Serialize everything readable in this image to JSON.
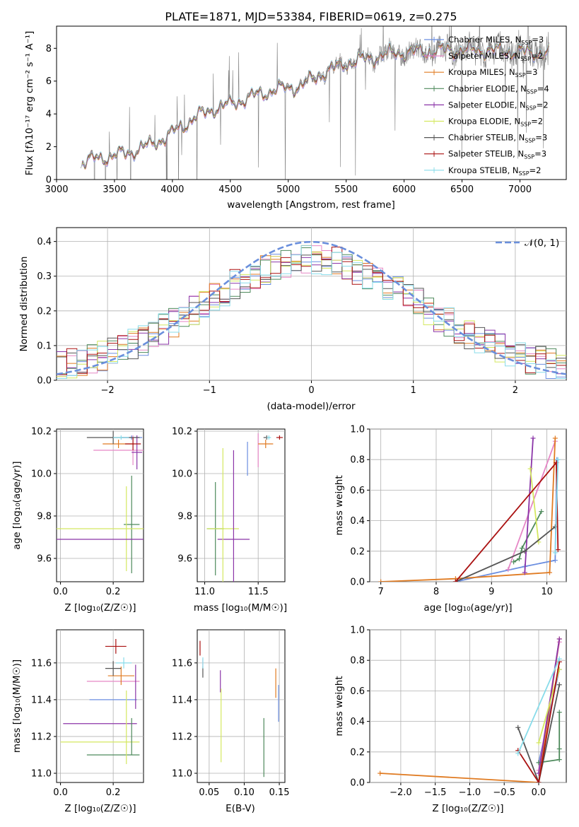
{
  "figure": {
    "title": "PLATE=1871, MJD=53384, FIBERID=0619, z=0.275"
  },
  "colors": {
    "Chabrier MILES": "#6b8ee0",
    "Salpeter MILES": "#e687c6",
    "Kroupa MILES": "#e07b22",
    "Chabrier ELODIE": "#4e8a5c",
    "Salpeter ELODIE": "#8b35a8",
    "Kroupa ELODIE": "#d4e860",
    "Chabrier STELIB": "#555555",
    "Salpeter STELIB": "#aa1111",
    "Kroupa STELIB": "#88dcea",
    "data": "#7f7f7f",
    "normal": "#6a8fdc"
  },
  "chart_data": [
    {
      "id": "spectrum",
      "type": "line",
      "title": "PLATE=1871, MJD=53384, FIBERID=0619, z=0.275",
      "xlabel": "wavelength [Angstrom, rest frame]",
      "ylabel": "Flux [f_λ 10^-17 erg cm^-2 s^-1 A^-1]",
      "xlim": [
        3000,
        7400
      ],
      "ylim": [
        0,
        9.35
      ],
      "xticks": [
        "3000",
        "3500",
        "4000",
        "4500",
        "5000",
        "5500",
        "6000",
        "6500",
        "7000"
      ],
      "yticks": [
        "0",
        "2",
        "4",
        "6",
        "8"
      ],
      "grid": false,
      "legend_position": "right",
      "legend": [
        {
          "name": "Chabrier MILES",
          "nssp": "3"
        },
        {
          "name": "Salpeter MILES",
          "nssp": "2"
        },
        {
          "name": "Kroupa MILES",
          "nssp": "3"
        },
        {
          "name": "Chabrier ELODIE",
          "nssp": "4"
        },
        {
          "name": "Salpeter ELODIE",
          "nssp": "2"
        },
        {
          "name": "Kroupa ELODIE",
          "nssp": "2"
        },
        {
          "name": "Chabrier STELIB",
          "nssp": "3"
        },
        {
          "name": "Salpeter STELIB",
          "nssp": "3"
        },
        {
          "name": "Kroupa STELIB",
          "nssp": "2"
        }
      ],
      "continuum_x": [
        3200,
        3350,
        3500,
        3650,
        3800,
        3950,
        4050,
        4200,
        4350,
        4500,
        4700,
        4900,
        5100,
        5300,
        5500,
        5700,
        5900,
        6100,
        6400,
        6700,
        7000,
        7250
      ],
      "continuum_y": [
        1.0,
        1.3,
        1.45,
        1.7,
        2.1,
        2.6,
        3.1,
        3.8,
        4.3,
        4.6,
        5.1,
        5.5,
        5.7,
        6.5,
        7.1,
        7.4,
        7.7,
        7.8,
        7.9,
        7.9,
        7.8,
        7.7
      ]
    },
    {
      "id": "residuals",
      "type": "histogram",
      "xlabel": "(data-model)/error",
      "ylabel": "Normed distribution",
      "xlim": [
        -2.5,
        2.5
      ],
      "ylim": [
        0,
        0.44
      ],
      "xticks": [
        "−2",
        "−1",
        "0",
        "1",
        "2"
      ],
      "yticks": [
        "0.0",
        "0.1",
        "0.2",
        "0.3",
        "0.4"
      ],
      "grid": true,
      "legend_position": "top-right",
      "normal_label": "𝒩(0, 1)",
      "bin_width": 0.1
    },
    {
      "id": "age-vs-Z",
      "type": "errorbar",
      "xlabel": "Z [log10(Z/Z⊙)]",
      "ylabel": "age [log10(age/yr)]",
      "xlim": [
        -0.015,
        0.315
      ],
      "ylim": [
        9.49,
        10.21
      ],
      "xticks": [
        "0.0",
        "0.2"
      ],
      "yticks": [
        "9.6",
        "9.8",
        "10.0",
        "10.2"
      ],
      "points": [
        {
          "model": "Chabrier MILES",
          "x": 0.27,
          "y": 10.17,
          "xerr": 0.04,
          "yerr": 0.01
        },
        {
          "model": "Salpeter MILES",
          "x": 0.275,
          "y": 10.11,
          "xerr": 0.15,
          "yerr": 0.07
        },
        {
          "model": "Kroupa MILES",
          "x": 0.22,
          "y": 10.14,
          "xerr": 0.06,
          "yerr": 0.02
        },
        {
          "model": "Chabrier ELODIE",
          "x": 0.27,
          "y": 9.76,
          "xerr": 0.03,
          "yerr": 0.23
        },
        {
          "model": "Salpeter ELODIE",
          "x": 0.29,
          "y": 10.1,
          "xerr": 0.02,
          "yerr": 0.08
        },
        {
          "model": "Kroupa ELODIE",
          "x": 0.25,
          "y": 9.74,
          "xerr": 0.3,
          "yerr": 0.2
        },
        {
          "model": "Chabrier STELIB",
          "x": 0.2,
          "y": 10.17,
          "xerr": 0.1,
          "yerr": 0.03
        },
        {
          "model": "Salpeter STELIB",
          "x": 0.275,
          "y": 10.14,
          "xerr": 0.03,
          "yerr": 0.03
        },
        {
          "model": "Kroupa STELIB",
          "x": 0.23,
          "y": 10.17,
          "xerr": 0.03,
          "yerr": 0.01
        },
        {
          "model": "Salpeter ELODIE",
          "x": 0.1,
          "y": 9.69,
          "xerr": 0.29,
          "yerr": 0.0
        }
      ]
    },
    {
      "id": "age-vs-mass",
      "type": "errorbar",
      "xlabel": "mass [log10(M/M⊙)]",
      "ylabel": "",
      "xlim": [
        10.93,
        11.75
      ],
      "ylim": [
        9.49,
        10.21
      ],
      "xticks": [
        "11.0",
        "11.5"
      ],
      "yticks": [
        "9.6",
        "9.8",
        "10.0",
        "10.2"
      ],
      "points": [
        {
          "model": "Chabrier MILES",
          "x": 11.4,
          "y": 10.07,
          "xerr": 0.0,
          "yerr": 0.08
        },
        {
          "model": "Salpeter MILES",
          "x": 11.5,
          "y": 10.11,
          "xerr": 0.0,
          "yerr": 0.08
        },
        {
          "model": "Kroupa MILES",
          "x": 11.57,
          "y": 10.14,
          "xerr": 0.07,
          "yerr": 0.02
        },
        {
          "model": "Chabrier ELODIE",
          "x": 11.1,
          "y": 9.74,
          "xerr": 0.08,
          "yerr": 0.22
        },
        {
          "model": "Salpeter ELODIE",
          "x": 11.27,
          "y": 9.69,
          "xerr": 0.15,
          "yerr": 0.0
        },
        {
          "model": "Kroupa ELODIE",
          "x": 11.17,
          "y": 9.74,
          "xerr": 0.15,
          "yerr": 0.38
        },
        {
          "model": "Chabrier STELIB",
          "x": 11.58,
          "y": 10.17,
          "xerr": 0.03,
          "yerr": 0.01
        },
        {
          "model": "Salpeter STELIB",
          "x": 11.7,
          "y": 10.17,
          "xerr": 0.03,
          "yerr": 0.01
        },
        {
          "model": "Kroupa STELIB",
          "x": 11.6,
          "y": 10.17,
          "xerr": 0.02,
          "yerr": 0.01
        },
        {
          "model": "Salpeter ELODIE",
          "x": 11.27,
          "y": 9.8,
          "xerr": 0.0,
          "yerr": 0.31
        }
      ]
    },
    {
      "id": "weight-vs-age",
      "type": "line",
      "xlabel": "age [log10(age/yr)]",
      "ylabel": "mass weight",
      "xlim": [
        6.8,
        10.35
      ],
      "ylim": [
        0,
        1
      ],
      "xticks": [
        "7",
        "8",
        "9",
        "10"
      ],
      "yticks": [
        "0.0",
        "0.2",
        "0.4",
        "0.6",
        "0.8",
        "1.0"
      ],
      "grid": true,
      "series": [
        {
          "model": "Chabrier MILES",
          "x": [
            8.35,
            9.6,
            10.15,
            10.18
          ],
          "y": [
            0.0,
            0.1,
            0.14,
            0.8
          ]
        },
        {
          "model": "Salpeter MILES",
          "x": [
            9.3,
            10.15
          ],
          "y": [
            0.08,
            0.92
          ]
        },
        {
          "model": "Kroupa MILES",
          "x": [
            7.0,
            8.35,
            10.05,
            10.15
          ],
          "y": [
            0.0,
            0.02,
            0.06,
            0.94
          ]
        },
        {
          "model": "Chabrier ELODIE",
          "x": [
            9.4,
            9.5,
            9.55,
            9.9
          ],
          "y": [
            0.13,
            0.15,
            0.22,
            0.46
          ]
        },
        {
          "model": "Salpeter ELODIE",
          "x": [
            9.6,
            9.75
          ],
          "y": [
            0.06,
            0.94
          ]
        },
        {
          "model": "Kroupa ELODIE",
          "x": [
            9.7,
            9.85
          ],
          "y": [
            0.74,
            0.26
          ]
        },
        {
          "model": "Chabrier STELIB",
          "x": [
            8.35,
            9.6,
            10.15
          ],
          "y": [
            0.0,
            0.2,
            0.36
          ]
        },
        {
          "model": "Salpeter STELIB",
          "x": [
            8.35,
            10.17,
            10.2
          ],
          "y": [
            0.0,
            0.78,
            0.21
          ]
        },
        {
          "model": "Kroupa STELIB",
          "x": [
            10.15,
            10.2
          ],
          "y": [
            0.19,
            0.8
          ]
        }
      ]
    },
    {
      "id": "mass-vs-Z",
      "type": "errorbar",
      "xlabel": "Z [log10(Z/Z⊙)]",
      "ylabel": "mass [log10(M/M⊙)]",
      "xlim": [
        -0.015,
        0.315
      ],
      "ylim": [
        10.95,
        11.78
      ],
      "xticks": [
        "0.0",
        "0.2"
      ],
      "yticks": [
        "11.0",
        "11.2",
        "11.4",
        "11.6"
      ],
      "points": [
        {
          "model": "Chabrier MILES",
          "x": 0.2,
          "y": 11.4,
          "xerr": 0.09,
          "yerr": 0.0
        },
        {
          "model": "Salpeter MILES",
          "x": 0.2,
          "y": 11.5,
          "xerr": 0.1,
          "yerr": 0.0
        },
        {
          "model": "Kroupa MILES",
          "x": 0.23,
          "y": 11.53,
          "xerr": 0.05,
          "yerr": 0.05
        },
        {
          "model": "Chabrier ELODIE",
          "x": 0.2,
          "y": 11.1,
          "xerr": 0.1,
          "yerr": 0.0
        },
        {
          "model": "Salpeter ELODIE",
          "x": 0.15,
          "y": 11.27,
          "xerr": 0.14,
          "yerr": 0.0
        },
        {
          "model": "Kroupa ELODIE",
          "x": 0.15,
          "y": 11.17,
          "xerr": 0.15,
          "yerr": 0.0
        },
        {
          "model": "Chabrier STELIB",
          "x": 0.2,
          "y": 11.57,
          "xerr": 0.03,
          "yerr": 0.04
        },
        {
          "model": "Salpeter STELIB",
          "x": 0.21,
          "y": 11.69,
          "xerr": 0.04,
          "yerr": 0.04
        },
        {
          "model": "Kroupa STELIB",
          "x": 0.24,
          "y": 11.6,
          "xerr": 0.03,
          "yerr": 0.03
        },
        {
          "model": "Salpeter ELODIE",
          "x": 0.285,
          "y": 11.47,
          "xerr": 0.0,
          "yerr": 0.12
        },
        {
          "model": "Kroupa ELODIE",
          "x": 0.25,
          "y": 11.25,
          "xerr": 0.0,
          "yerr": 0.2
        },
        {
          "model": "Chabrier ELODIE",
          "x": 0.27,
          "y": 11.2,
          "xerr": 0.0,
          "yerr": 0.1
        }
      ]
    },
    {
      "id": "mass-vs-ebv",
      "type": "errorbar",
      "xlabel": "E(B-V)",
      "ylabel": "",
      "xlim": [
        0.033,
        0.158
      ],
      "ylim": [
        10.95,
        11.78
      ],
      "xticks": [
        "0.05",
        "0.10",
        "0.15"
      ],
      "yticks": [
        "11.0",
        "11.2",
        "11.4",
        "11.6"
      ],
      "points": [
        {
          "model": "Chabrier MILES",
          "x": 0.149,
          "y": 11.38,
          "xerr": 0.0,
          "yerr": 0.1
        },
        {
          "model": "Salpeter MILES",
          "x": 0.041,
          "y": 11.6,
          "xerr": 0.0,
          "yerr": 0.02
        },
        {
          "model": "Kroupa MILES",
          "x": 0.145,
          "y": 11.49,
          "xerr": 0.0,
          "yerr": 0.08
        },
        {
          "model": "Chabrier ELODIE",
          "x": 0.128,
          "y": 11.14,
          "xerr": 0.0,
          "yerr": 0.16
        },
        {
          "model": "Salpeter ELODIE",
          "x": 0.066,
          "y": 11.5,
          "xerr": 0.0,
          "yerr": 0.06
        },
        {
          "model": "Kroupa ELODIE",
          "x": 0.067,
          "y": 11.26,
          "xerr": 0.0,
          "yerr": 0.2
        },
        {
          "model": "Chabrier STELIB",
          "x": 0.041,
          "y": 11.55,
          "xerr": 0.0,
          "yerr": 0.03
        },
        {
          "model": "Salpeter STELIB",
          "x": 0.037,
          "y": 11.68,
          "xerr": 0.0,
          "yerr": 0.04
        },
        {
          "model": "Kroupa STELIB",
          "x": 0.041,
          "y": 11.6,
          "xerr": 0.0,
          "yerr": 0.03
        }
      ]
    },
    {
      "id": "weight-vs-Z",
      "type": "line",
      "xlabel": "Z [log10(Z/Z⊙)]",
      "ylabel": "mass weight",
      "xlim": [
        -2.45,
        0.4
      ],
      "ylim": [
        0,
        1
      ],
      "xticks": [
        "−2.0",
        "−1.5",
        "−1.0",
        "−0.5",
        "0.0"
      ],
      "yticks": [
        "0.0",
        "0.2",
        "0.4",
        "0.6",
        "0.8",
        "1.0"
      ],
      "grid": true,
      "series": [
        {
          "model": "Chabrier MILES",
          "x": [
            0.0,
            0.3
          ],
          "y": [
            0.13,
            0.74
          ]
        },
        {
          "model": "Salpeter MILES",
          "x": [
            0.0,
            0.3
          ],
          "y": [
            0.08,
            0.92
          ]
        },
        {
          "model": "Kroupa MILES",
          "x": [
            -2.3,
            0.0,
            0.3
          ],
          "y": [
            0.06,
            0.0,
            0.94
          ]
        },
        {
          "model": "Chabrier ELODIE",
          "x": [
            0.0,
            0.3,
            0.3,
            0.3
          ],
          "y": [
            0.13,
            0.15,
            0.22,
            0.46
          ]
        },
        {
          "model": "Salpeter ELODIE",
          "x": [
            0.0,
            0.3
          ],
          "y": [
            0.06,
            0.94
          ]
        },
        {
          "model": "Kroupa ELODIE",
          "x": [
            0.0,
            0.3
          ],
          "y": [
            0.26,
            0.74
          ]
        },
        {
          "model": "Chabrier STELIB",
          "x": [
            -0.3,
            0.0,
            0.3
          ],
          "y": [
            0.36,
            0.0,
            0.64
          ]
        },
        {
          "model": "Salpeter STELIB",
          "x": [
            -0.3,
            0.0,
            0.3
          ],
          "y": [
            0.21,
            0.0,
            0.79
          ]
        },
        {
          "model": "Kroupa STELIB",
          "x": [
            -0.3,
            0.3
          ],
          "y": [
            0.19,
            0.81
          ]
        }
      ]
    }
  ]
}
